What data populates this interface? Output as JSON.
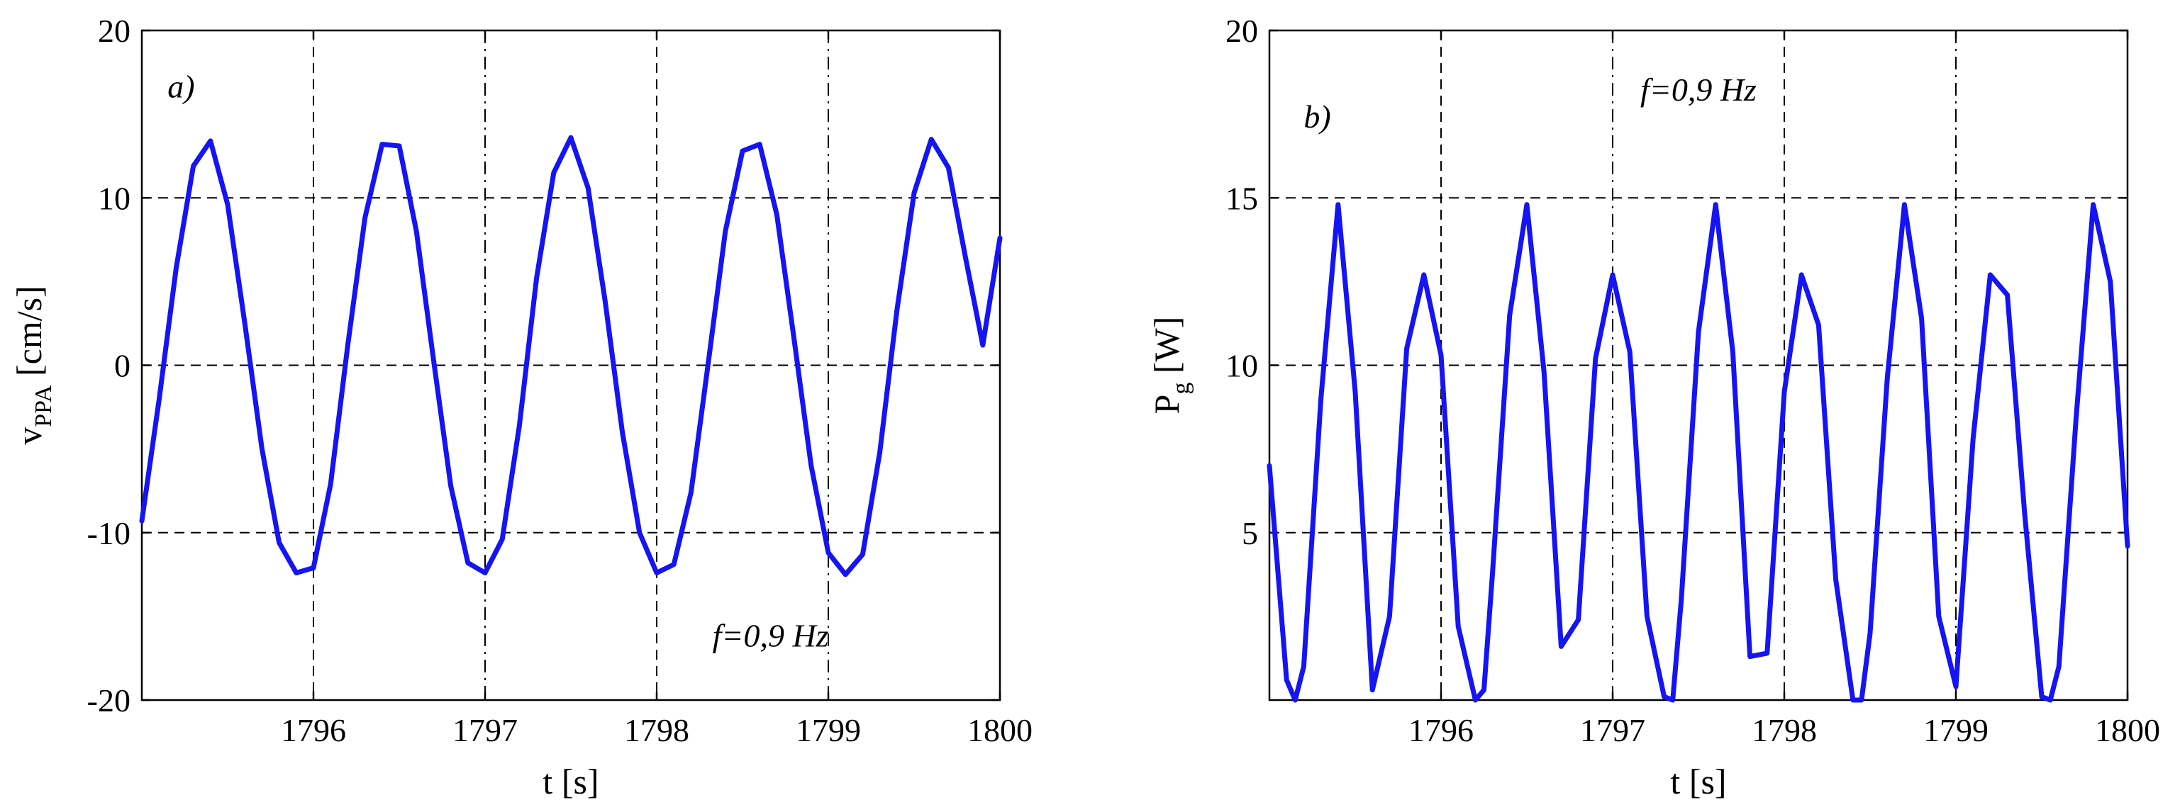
{
  "chart_data": [
    {
      "type": "line",
      "panel_label": "a)",
      "annotation": "f=0,9 Hz",
      "xlabel": "t [s]",
      "ylabel_main": "v",
      "ylabel_sub": "PPA",
      "ylabel_unit": " [cm/s]",
      "xlim": [
        1795,
        1800
      ],
      "ylim": [
        -20,
        20
      ],
      "xticks": [
        1796,
        1797,
        1798,
        1799,
        1800
      ],
      "xtick_labels": [
        "1796",
        "1797",
        "1798",
        "1799",
        "1800"
      ],
      "yticks": [
        -20,
        -10,
        0,
        10,
        20
      ],
      "ytick_labels": [
        "-20",
        "-10",
        "0",
        "10",
        "20"
      ],
      "grid": true,
      "grid_dash": [
        "dash",
        "dashdot",
        "dash",
        "dashdot"
      ],
      "color": "#1414f5",
      "series": [
        {
          "x": [
            1795.0,
            1795.1,
            1795.2,
            1795.3,
            1795.4,
            1795.5,
            1795.6,
            1795.7,
            1795.8,
            1795.9,
            1796.0,
            1796.1,
            1796.2,
            1796.3,
            1796.4,
            1796.5,
            1796.6,
            1796.7,
            1796.8,
            1796.9,
            1797.0,
            1797.1,
            1797.2,
            1797.3,
            1797.4,
            1797.5,
            1797.6,
            1797.7,
            1797.8,
            1797.9,
            1798.0,
            1798.1,
            1798.2,
            1798.3,
            1798.4,
            1798.5,
            1798.6,
            1798.7,
            1798.8,
            1798.9,
            1799.0,
            1799.1,
            1799.2,
            1799.3,
            1799.4,
            1799.5,
            1799.6,
            1799.7,
            1799.8,
            1799.9,
            1800.0
          ],
          "y": [
            -9.3,
            -2.1,
            5.8,
            11.9,
            13.4,
            9.6,
            2.5,
            -5.0,
            -10.6,
            -12.4,
            -12.1,
            -7.1,
            1.2,
            8.8,
            13.2,
            13.1,
            8.0,
            0.3,
            -7.2,
            -11.8,
            -12.4,
            -10.4,
            -3.6,
            5.2,
            11.5,
            13.6,
            10.6,
            3.8,
            -4.0,
            -10.0,
            -12.4,
            -11.9,
            -7.6,
            0.1,
            8.0,
            12.8,
            13.2,
            9.0,
            1.6,
            -6.0,
            -11.2,
            -12.5,
            -11.3,
            -5.2,
            3.3,
            10.3,
            13.5,
            11.8,
            6.4,
            1.2,
            7.6
          ]
        }
      ]
    },
    {
      "type": "line",
      "panel_label": "b)",
      "annotation": "f=0,9 Hz",
      "xlabel": "t [s]",
      "ylabel_main": "P",
      "ylabel_sub": "g",
      "ylabel_unit": " [W]",
      "xlim": [
        1795,
        1800
      ],
      "ylim": [
        0,
        20
      ],
      "xticks": [
        1796,
        1797,
        1798,
        1799,
        1800
      ],
      "xtick_labels": [
        "1796",
        "1797",
        "1798",
        "1799",
        "1800"
      ],
      "yticks": [
        5,
        10,
        15,
        20
      ],
      "ytick_labels": [
        "5",
        "10",
        "15",
        "20"
      ],
      "grid": true,
      "grid_dash": [
        "dash",
        "dashdot",
        "dash",
        "dashdot"
      ],
      "color": "#1414f5",
      "series": [
        {
          "x": [
            1795.0,
            1795.1,
            1795.15,
            1795.2,
            1795.3,
            1795.4,
            1795.5,
            1795.6,
            1795.7,
            1795.8,
            1795.9,
            1796.0,
            1796.1,
            1796.2,
            1796.25,
            1796.3,
            1796.4,
            1796.5,
            1796.6,
            1796.7,
            1796.8,
            1796.9,
            1797.0,
            1797.1,
            1797.2,
            1797.3,
            1797.35,
            1797.4,
            1797.5,
            1797.6,
            1797.7,
            1797.8,
            1797.9,
            1798.0,
            1798.1,
            1798.2,
            1798.3,
            1798.4,
            1798.45,
            1798.5,
            1798.6,
            1798.7,
            1798.8,
            1798.9,
            1799.0,
            1799.1,
            1799.2,
            1799.3,
            1799.4,
            1799.5,
            1799.55,
            1799.6,
            1799.7,
            1799.8,
            1799.9,
            1800.0
          ],
          "y": [
            7.0,
            0.6,
            0.0,
            1.0,
            9.0,
            14.8,
            9.2,
            0.3,
            2.5,
            10.5,
            12.7,
            10.3,
            2.2,
            0.0,
            0.3,
            3.8,
            11.5,
            14.8,
            9.8,
            1.6,
            2.4,
            10.2,
            12.7,
            10.4,
            2.5,
            0.1,
            0.0,
            3.0,
            11.0,
            14.8,
            10.4,
            1.3,
            1.4,
            9.2,
            12.7,
            11.2,
            3.6,
            0.0,
            0.0,
            2.0,
            9.6,
            14.8,
            11.4,
            2.5,
            0.4,
            7.8,
            12.7,
            12.1,
            5.6,
            0.1,
            0.0,
            1.0,
            8.4,
            14.8,
            12.5,
            4.6
          ]
        }
      ]
    }
  ]
}
